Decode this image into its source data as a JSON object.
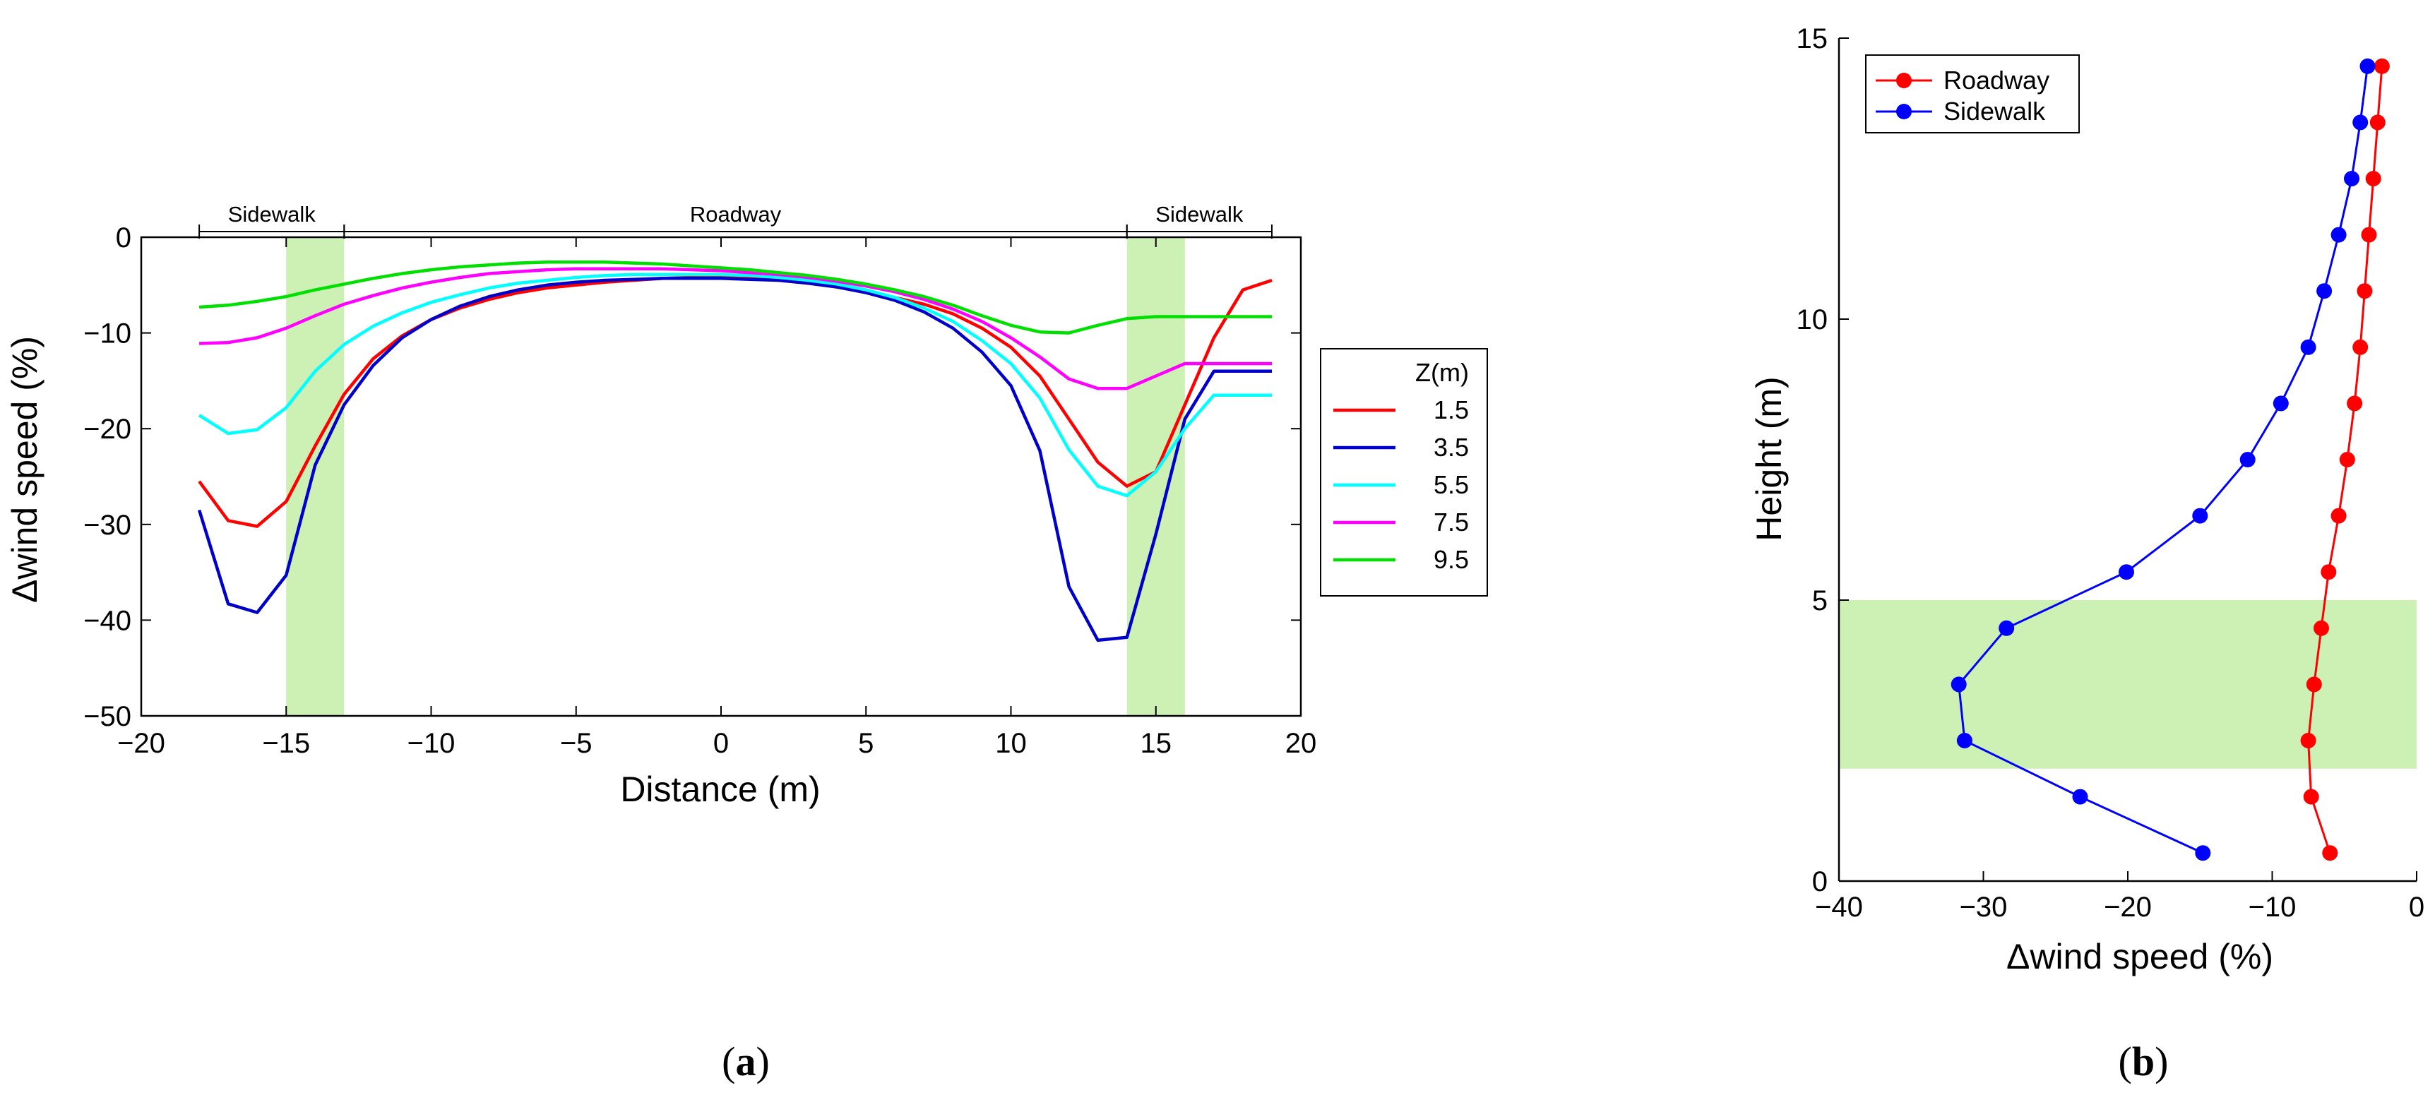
{
  "chart_data": [
    {
      "type": "line",
      "panel_label_prefix": "(",
      "panel_label_letter": "a",
      "panel_label_suffix": ")",
      "xlabel": "Distance (m)",
      "ylabel": "Δwind speed (%)",
      "xlim": [
        -20,
        20
      ],
      "ylim": [
        -50,
        0
      ],
      "xticks": [
        -20,
        -15,
        -10,
        -5,
        0,
        5,
        10,
        15,
        20
      ],
      "yticks": [
        0,
        -10,
        -20,
        -30,
        -40,
        -50
      ],
      "grid": false,
      "shaded_regions_x": [
        [
          -15,
          -13
        ],
        [
          14,
          16
        ]
      ],
      "regions": [
        {
          "label": "Sidewalk",
          "x0": -18,
          "x1": -13
        },
        {
          "label": "Roadway",
          "x0": -13,
          "x1": 14
        },
        {
          "label": "Sidewalk",
          "x0": 14,
          "x1": 19
        }
      ],
      "legend_title": "Z(m)",
      "legend_position": "right",
      "x": [
        -18,
        -17,
        -16,
        -15,
        -14,
        -13,
        -12,
        -11,
        -10,
        -9,
        -8,
        -7,
        -6,
        -5,
        -4,
        -3,
        -2,
        -1,
        0,
        1,
        2,
        3,
        4,
        5,
        6,
        7,
        8,
        9,
        10,
        11,
        12,
        13,
        14,
        15,
        16,
        17,
        18,
        19
      ],
      "series": [
        {
          "name": "1.5",
          "color": "#ff0000",
          "values": [
            -25.5,
            -29.6,
            -30.2,
            -27.6,
            -21.8,
            -16.4,
            -12.7,
            -10.3,
            -8.6,
            -7.4,
            -6.5,
            -5.8,
            -5.3,
            -5,
            -4.7,
            -4.5,
            -4.3,
            -4.2,
            -4.2,
            -4.3,
            -4.5,
            -4.8,
            -5.2,
            -5.7,
            -6.3,
            -7,
            -8,
            -9.5,
            -11.5,
            -14.5,
            -19,
            -23.5,
            -26,
            -24.5,
            -17.5,
            -10.5,
            -5.5,
            -4.5
          ]
        },
        {
          "name": "3.5",
          "color": "#0000cc",
          "values": [
            -28.5,
            -38.3,
            -39.2,
            -35.3,
            -23.8,
            -17.5,
            -13.4,
            -10.5,
            -8.6,
            -7.2,
            -6.2,
            -5.5,
            -5,
            -4.7,
            -4.5,
            -4.4,
            -4.3,
            -4.3,
            -4.3,
            -4.4,
            -4.5,
            -4.8,
            -5.2,
            -5.8,
            -6.6,
            -7.8,
            -9.5,
            -12,
            -15.5,
            -22.3,
            -36.5,
            -42.1,
            -41.8,
            -31,
            -19,
            -14,
            -14,
            -14
          ]
        },
        {
          "name": "5.5",
          "color": "#00ffff",
          "values": [
            -18.6,
            -20.5,
            -20.1,
            -17.8,
            -14,
            -11.2,
            -9.3,
            -7.9,
            -6.8,
            -6,
            -5.3,
            -4.8,
            -4.5,
            -4.2,
            -4,
            -3.9,
            -3.9,
            -3.9,
            -3.9,
            -4,
            -4.2,
            -4.5,
            -4.9,
            -5.5,
            -6.3,
            -7.4,
            -8.8,
            -10.8,
            -13.2,
            -16.8,
            -22.2,
            -26,
            -27,
            -24.5,
            -20,
            -16.5,
            -16.5,
            -16.5
          ]
        },
        {
          "name": "7.5",
          "color": "#ff00ff",
          "values": [
            -11.1,
            -11,
            -10.5,
            -9.5,
            -8.2,
            -7,
            -6.1,
            -5.3,
            -4.7,
            -4.2,
            -3.8,
            -3.6,
            -3.4,
            -3.3,
            -3.3,
            -3.3,
            -3.3,
            -3.4,
            -3.5,
            -3.7,
            -3.9,
            -4.2,
            -4.6,
            -5.1,
            -5.7,
            -6.5,
            -7.5,
            -8.8,
            -10.5,
            -12.5,
            -14.8,
            -15.8,
            -15.8,
            -14.5,
            -13.2,
            -13.2,
            -13.2,
            -13.2
          ]
        },
        {
          "name": "9.5",
          "color": "#00e000",
          "values": [
            -7.3,
            -7.1,
            -6.7,
            -6.2,
            -5.5,
            -4.9,
            -4.3,
            -3.8,
            -3.4,
            -3.1,
            -2.9,
            -2.7,
            -2.6,
            -2.6,
            -2.6,
            -2.7,
            -2.8,
            -3,
            -3.2,
            -3.4,
            -3.7,
            -4,
            -4.4,
            -4.9,
            -5.5,
            -6.2,
            -7.1,
            -8.2,
            -9.2,
            -9.9,
            -10,
            -9.2,
            -8.5,
            -8.3,
            -8.3,
            -8.3,
            -8.3,
            -8.3
          ]
        }
      ]
    },
    {
      "type": "line",
      "panel_label_prefix": "(",
      "panel_label_letter": "b",
      "panel_label_suffix": ")",
      "xlabel": "Δwind speed (%)",
      "ylabel": "Height (m)",
      "xlim": [
        -40,
        0
      ],
      "ylim": [
        0,
        15
      ],
      "xticks": [
        -40,
        -30,
        -20,
        -10,
        0
      ],
      "yticks": [
        0,
        5,
        10,
        15
      ],
      "grid": false,
      "shaded_region_y": [
        2,
        5
      ],
      "legend_position": "top-left",
      "markers": true,
      "height": [
        0.5,
        1.5,
        2.5,
        3.5,
        4.5,
        5.5,
        6.5,
        7.5,
        8.5,
        9.5,
        10.5,
        11.5,
        12.5,
        13.5,
        14.5
      ],
      "series": [
        {
          "name": "Roadway",
          "color": "#ff0000",
          "values": [
            -6,
            -7.3,
            -7.5,
            -7.1,
            -6.6,
            -6.1,
            -5.4,
            -4.8,
            -4.3,
            -3.9,
            -3.6,
            -3.3,
            -3,
            -2.7,
            -2.4
          ]
        },
        {
          "name": "Sidewalk",
          "color": "#0000ff",
          "values": [
            -14.8,
            -23.3,
            -31.3,
            -31.7,
            -28.4,
            -20.1,
            -15,
            -11.7,
            -9.4,
            -7.5,
            -6.4,
            -5.4,
            -4.5,
            -3.9,
            -3.4
          ]
        }
      ]
    }
  ]
}
